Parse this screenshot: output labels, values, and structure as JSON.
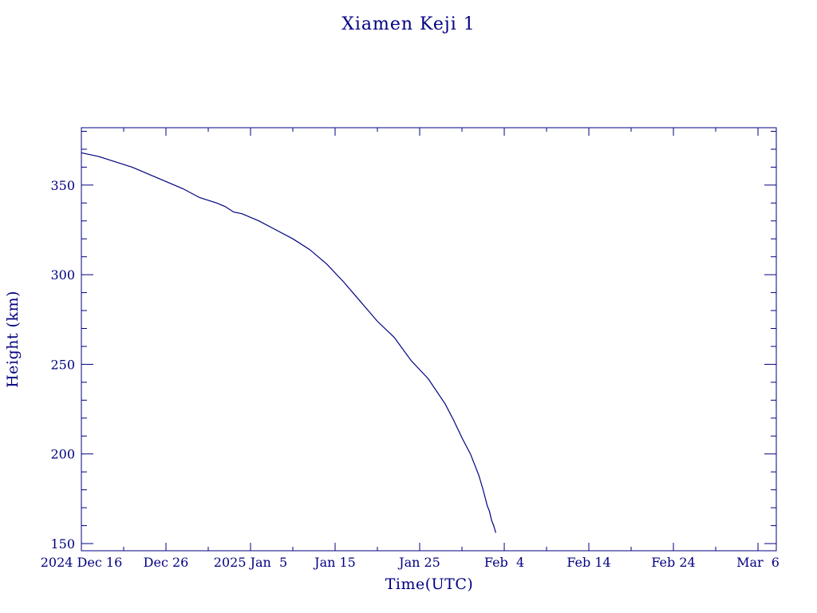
{
  "chart_data": {
    "type": "line",
    "title": "Xiamen Keji 1",
    "xlabel": "Time(UTC)",
    "ylabel": "Height (km)",
    "x_type": "date",
    "xlim": [
      "2024-12-16",
      "2025-03-08T04:00"
    ],
    "ylim": [
      146,
      382
    ],
    "x_ticks": [
      {
        "date": "2024-12-16",
        "label": "2024 Dec 16"
      },
      {
        "date": "2024-12-26",
        "label": "Dec 26"
      },
      {
        "date": "2025-01-05",
        "label": "2025 Jan  5"
      },
      {
        "date": "2025-01-15",
        "label": "Jan 15"
      },
      {
        "date": "2025-01-25",
        "label": "Jan 25"
      },
      {
        "date": "2025-02-04",
        "label": "Feb  4"
      },
      {
        "date": "2025-02-14",
        "label": "Feb 14"
      },
      {
        "date": "2025-02-24",
        "label": "Feb 24"
      },
      {
        "date": "2025-03-06",
        "label": "Mar  6"
      }
    ],
    "y_ticks": [
      150,
      200,
      250,
      300,
      350
    ],
    "grid": false,
    "color": "#000080",
    "series": [
      {
        "x": [
          "2024-12-16",
          "2024-12-18",
          "2024-12-20",
          "2024-12-22",
          "2024-12-24",
          "2024-12-26",
          "2024-12-28",
          "2024-12-30",
          "2025-01-01",
          "2025-01-02",
          "2025-01-03",
          "2025-01-04",
          "2025-01-06",
          "2025-01-08",
          "2025-01-10",
          "2025-01-12",
          "2025-01-14",
          "2025-01-16",
          "2025-01-18",
          "2025-01-20",
          "2025-01-22",
          "2025-01-24",
          "2025-01-26",
          "2025-01-28",
          "2025-01-29",
          "2025-01-30",
          "2025-01-31",
          "2025-02-01",
          "2025-02-01T12:00",
          "2025-02-02",
          "2025-02-02T06:00",
          "2025-02-02T12:00",
          "2025-02-02T18:00",
          "2025-02-03"
        ],
        "y": [
          368,
          366,
          363,
          360,
          356,
          352,
          348,
          343,
          340,
          338,
          335,
          334,
          330,
          325,
          320,
          314,
          306,
          296,
          285,
          274,
          265,
          252,
          242,
          228,
          219,
          209,
          200,
          188,
          180,
          171,
          168,
          163,
          160,
          156
        ]
      }
    ]
  }
}
